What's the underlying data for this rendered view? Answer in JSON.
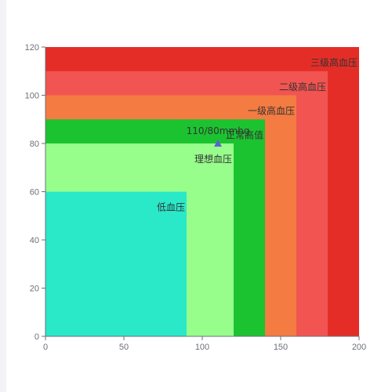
{
  "chart_data": {
    "type": "area",
    "title": "",
    "xlabel": "",
    "ylabel": "",
    "xlim": [
      0,
      200
    ],
    "ylim": [
      0,
      120
    ],
    "x_ticks": [
      0,
      50,
      100,
      150,
      200
    ],
    "y_ticks": [
      0,
      20,
      40,
      60,
      80,
      100,
      120
    ],
    "grid": false,
    "zones": [
      {
        "name": "三级高血压",
        "x_max": 200,
        "y_max": 120,
        "color": "#e52d27"
      },
      {
        "name": "二级高血压",
        "x_max": 180,
        "y_max": 110,
        "color": "#f15451"
      },
      {
        "name": "一级高血压",
        "x_max": 160,
        "y_max": 100,
        "color": "#f47b41"
      },
      {
        "name": "正常高值",
        "x_max": 140,
        "y_max": 90,
        "color": "#1cc330"
      },
      {
        "name": "理想血压",
        "x_max": 120,
        "y_max": 80,
        "color": "#97fe8c"
      },
      {
        "name": "低血压",
        "x_max": 90,
        "y_max": 60,
        "color": "#29e9c9"
      }
    ],
    "points": [
      {
        "label": "110/80mmhg",
        "x": 110,
        "y": 80,
        "color": "#5b62d4",
        "symbol": "triangle"
      }
    ]
  }
}
